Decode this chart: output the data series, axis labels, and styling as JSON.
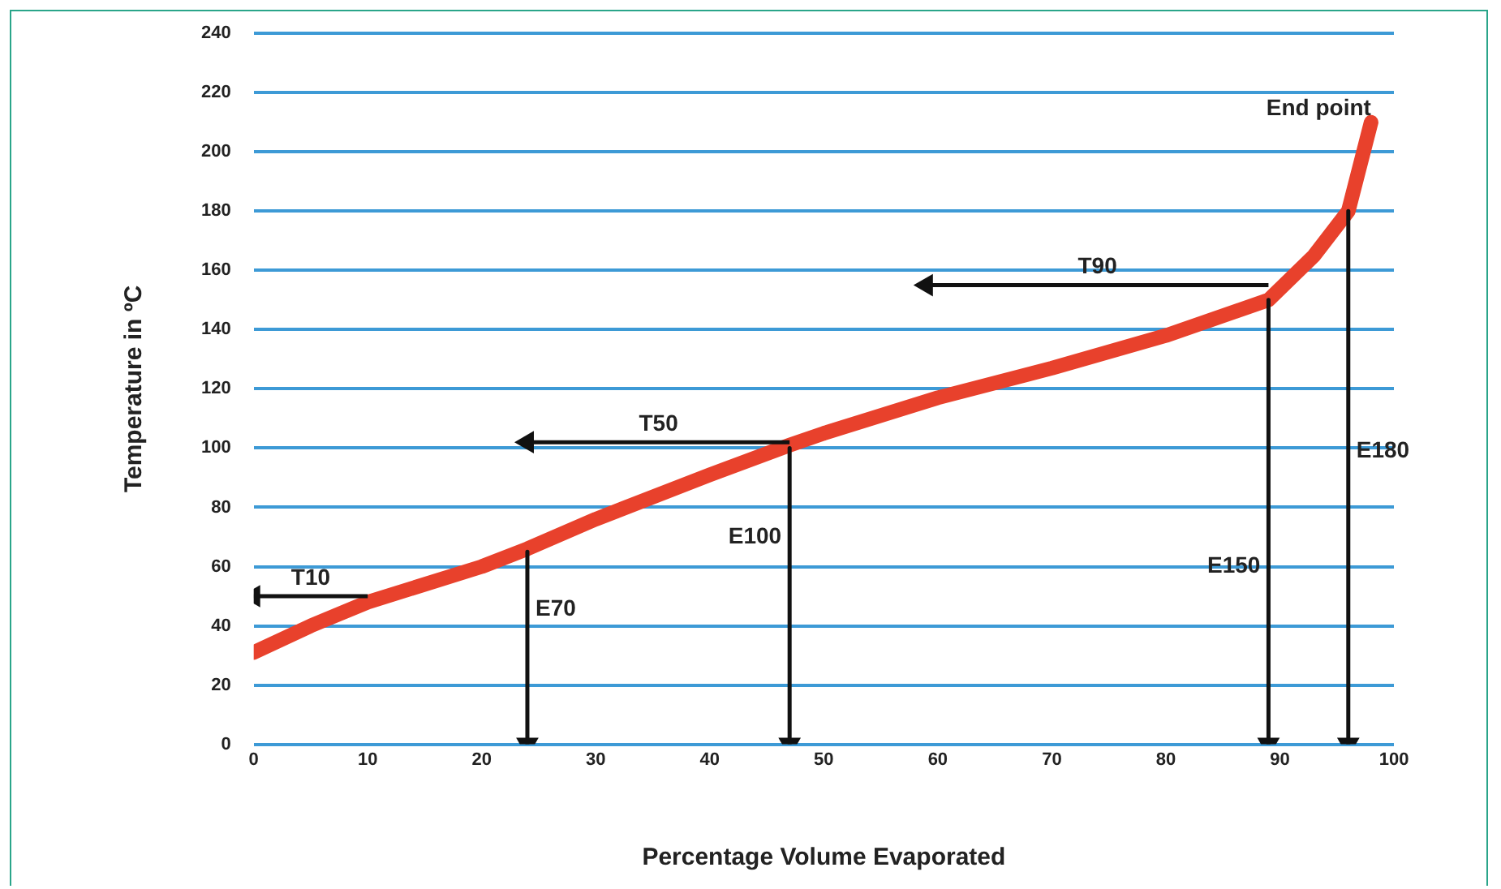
{
  "chart_data": {
    "type": "line",
    "xlabel": "Percentage Volume Evaporated",
    "ylabel": "Temperature in ºC",
    "xlim": [
      0,
      100
    ],
    "xticks": [
      0,
      10,
      20,
      30,
      40,
      50,
      60,
      70,
      80,
      90,
      100
    ],
    "ylim": [
      0,
      240
    ],
    "yticks": [
      0,
      20,
      40,
      60,
      80,
      100,
      120,
      140,
      160,
      180,
      200,
      220,
      240
    ],
    "grid": "y",
    "line_style": "solid",
    "legend": false,
    "series": [
      {
        "color": "#e8412c",
        "marker": "none",
        "x": [
          0,
          5,
          10,
          20,
          24,
          30,
          40,
          47,
          50,
          60,
          70,
          80,
          89,
          93,
          96,
          98
        ],
        "values": [
          31,
          40,
          48,
          60,
          66,
          76,
          91,
          101,
          105,
          117,
          127,
          138,
          150,
          165,
          180,
          210
        ]
      },
      {
        "name": "T10",
        "color": "#111111",
        "marker": "triangle",
        "x": [
          10,
          0
        ],
        "values": [
          50,
          50
        ]
      },
      {
        "name": "T50",
        "color": "#111111",
        "marker": "triangle",
        "x": [
          47,
          24
        ],
        "values": [
          102,
          102
        ]
      },
      {
        "name": "T90",
        "color": "#111111",
        "marker": "triangle",
        "x": [
          89,
          59
        ],
        "values": [
          155,
          155
        ]
      },
      {
        "name": "E70",
        "color": "#111111",
        "marker": "triangle",
        "x": [
          24,
          24
        ],
        "values": [
          65,
          0
        ]
      },
      {
        "name": "E100",
        "color": "#111111",
        "marker": "triangle",
        "x": [
          47,
          47
        ],
        "values": [
          100,
          0
        ]
      },
      {
        "name": "E150",
        "color": "#111111",
        "marker": "triangle",
        "x": [
          89,
          89
        ],
        "values": [
          150,
          0
        ]
      },
      {
        "name": "E180",
        "color": "#111111",
        "marker": "triangle",
        "x": [
          96,
          96
        ],
        "values": [
          180,
          0
        ]
      }
    ],
    "annotations": [
      {
        "text": "End point",
        "x": 98,
        "y": 210
      }
    ]
  }
}
